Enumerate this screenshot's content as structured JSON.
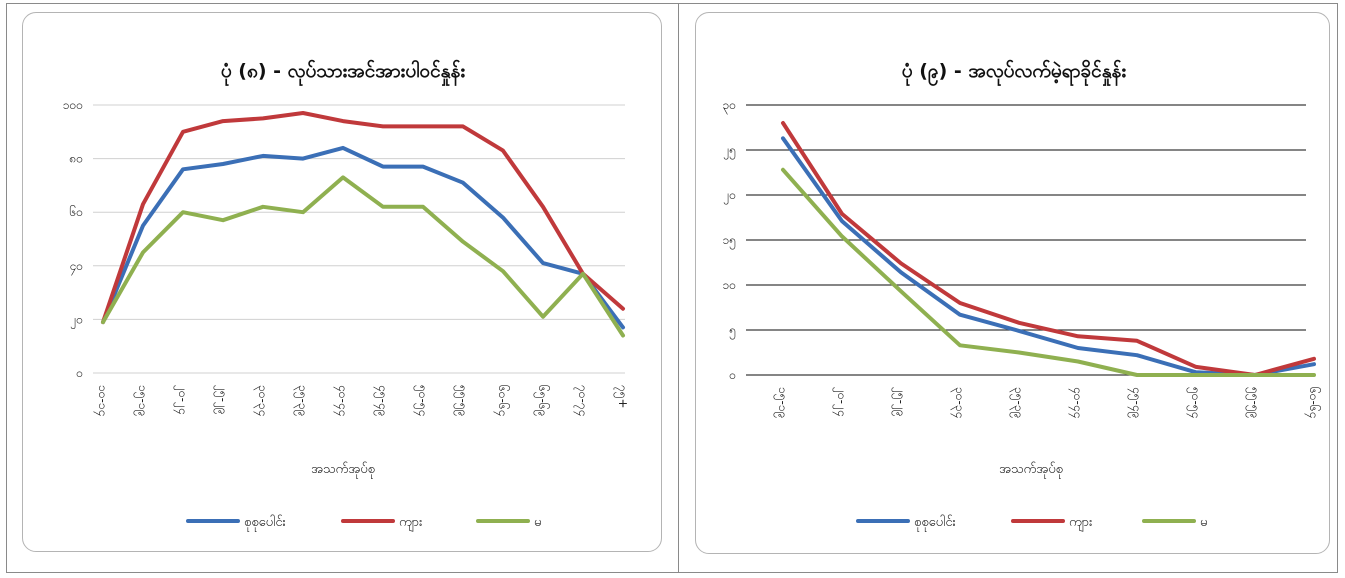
{
  "chart_data": [
    {
      "type": "line",
      "title": "ပုံ (၈) - လုပ်သားအင်အားပါဝင်နှုန်း",
      "xlabel": "အသက်အုပ်စု",
      "ylabel": "",
      "ylim": [
        0,
        100
      ],
      "yticks": [
        "၀",
        "၂၀",
        "၄၀",
        "၆၀",
        "၈၀",
        "၁၀၀"
      ],
      "grid": true,
      "legend": "bottom",
      "categories": [
        "၁၀-၁၄",
        "၁၅-၁၉",
        "၂၀-၂၄",
        "၂၅-၂၉",
        "၃၀-၃၄",
        "၃၅-၃၉",
        "၄၀-၄၄",
        "၄၅-၄၉",
        "၅၀-၅၄",
        "၅၅-၅၉",
        "၆၀-၆၄",
        "၆၅-၆၉",
        "၇၀-၇၄",
        "၇၅+"
      ],
      "series": [
        {
          "name": "စုစုပေါင်း",
          "color": "#3b6fb6",
          "values": [
            19,
            55,
            76,
            78,
            81,
            80,
            84,
            77,
            77,
            71,
            58,
            41,
            37,
            17
          ]
        },
        {
          "name": "ကျား",
          "color": "#c0393b",
          "values": [
            19,
            63,
            90,
            94,
            95,
            97,
            94,
            92,
            92,
            92,
            83,
            62,
            37,
            24
          ]
        },
        {
          "name": "မ",
          "color": "#8fb050",
          "values": [
            19,
            45,
            60,
            57,
            62,
            60,
            73,
            62,
            62,
            49,
            38,
            21,
            37,
            14
          ]
        }
      ]
    },
    {
      "type": "line",
      "title": "ပုံ (၉) - အလုပ်လက်မဲ့ရာခိုင်နှုန်း",
      "xlabel": "အသက်အုပ်စု",
      "ylabel": "",
      "ylim": [
        0,
        30
      ],
      "yticks": [
        "၀",
        "၅",
        "၁၀",
        "၁၅",
        "၂၀",
        "၂၅",
        "၃၀"
      ],
      "grid": true,
      "legend": "bottom",
      "categories": [
        "၁၅-၁၉",
        "၂၀-၂၄",
        "၂၅-၂၉",
        "၃၀-၃၄",
        "၃၅-၃၉",
        "၄၀-၄၄",
        "၄၅-၄၉",
        "၅၀-၅၄",
        "၅၅-၅၉",
        "၆၀-၆၄"
      ],
      "series": [
        {
          "name": "စုစုပေါင်း",
          "color": "#3b6fb6",
          "values": [
            26.3,
            17.1,
            11.4,
            6.7,
            4.9,
            3.0,
            2.2,
            0.3,
            0,
            1.2
          ]
        },
        {
          "name": "ကျား",
          "color": "#c0393b",
          "values": [
            28.0,
            17.9,
            12.4,
            8.0,
            5.8,
            4.3,
            3.8,
            0.9,
            0,
            1.8
          ]
        },
        {
          "name": "မ",
          "color": "#8fb050",
          "values": [
            22.8,
            15.4,
            9.3,
            3.3,
            2.5,
            1.5,
            0,
            0,
            0,
            0
          ]
        }
      ]
    }
  ]
}
